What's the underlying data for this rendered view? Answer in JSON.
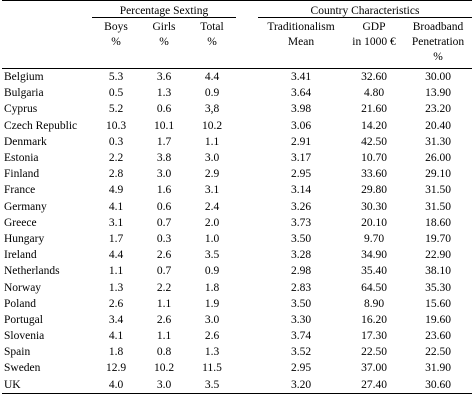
{
  "headers": {
    "group_sexting": "Percentage Sexting",
    "group_country": "Country Characteristics",
    "boys": [
      "Boys",
      "%"
    ],
    "girls": [
      "Girls",
      "%"
    ],
    "total": [
      "Total",
      "%"
    ],
    "trad": [
      "Traditionalism",
      "Mean"
    ],
    "gdp": [
      "GDP",
      "in 1000 €"
    ],
    "broadband": [
      "Broadband",
      "Penetration",
      "%"
    ]
  },
  "rows": [
    {
      "country": "Belgium",
      "boys": "5.3",
      "girls": "3.6",
      "total": "4.4",
      "trad": "3.41",
      "gdp": "32.60",
      "bb": "30.00"
    },
    {
      "country": "Bulgaria",
      "boys": "0.5",
      "girls": "1.3",
      "total": "0.9",
      "trad": "3.64",
      "gdp": "4.80",
      "bb": "13.90"
    },
    {
      "country": "Cyprus",
      "boys": "5.2",
      "girls": "0.6",
      "total": "3,8",
      "trad": "3.98",
      "gdp": "21.60",
      "bb": "23.20"
    },
    {
      "country": "Czech Republic",
      "boys": "10.3",
      "girls": "10.1",
      "total": "10.2",
      "trad": "3.06",
      "gdp": "14.20",
      "bb": "20.40"
    },
    {
      "country": "Denmark",
      "boys": "0.3",
      "girls": "1.7",
      "total": "1.1",
      "trad": "2.91",
      "gdp": "42.50",
      "bb": "31.30"
    },
    {
      "country": "Estonia",
      "boys": "2.2",
      "girls": "3.8",
      "total": "3.0",
      "trad": "3.17",
      "gdp": "10.70",
      "bb": "26.00"
    },
    {
      "country": "Finland",
      "boys": "2.8",
      "girls": "3.0",
      "total": "2.9",
      "trad": "2.95",
      "gdp": "33.60",
      "bb": "29.10"
    },
    {
      "country": "France",
      "boys": "4.9",
      "girls": "1.6",
      "total": "3.1",
      "trad": "3.14",
      "gdp": "29.80",
      "bb": "31.50"
    },
    {
      "country": "Germany",
      "boys": "4.1",
      "girls": "0.6",
      "total": "2.4",
      "trad": "3.26",
      "gdp": "30.30",
      "bb": "31.50"
    },
    {
      "country": "Greece",
      "boys": "3.1",
      "girls": "0.7",
      "total": "2.0",
      "trad": "3.73",
      "gdp": "20.10",
      "bb": "18.60"
    },
    {
      "country": "Hungary",
      "boys": "1.7",
      "girls": "0.3",
      "total": "1.0",
      "trad": "3.50",
      "gdp": "9.70",
      "bb": "19.70"
    },
    {
      "country": "Ireland",
      "boys": "4.4",
      "girls": "2.6",
      "total": "3.5",
      "trad": "3.28",
      "gdp": "34.90",
      "bb": "22.90"
    },
    {
      "country": "Netherlands",
      "boys": "1.1",
      "girls": "0.7",
      "total": "0.9",
      "trad": "2.98",
      "gdp": "35.40",
      "bb": "38.10"
    },
    {
      "country": "Norway",
      "boys": "1.3",
      "girls": "2.2",
      "total": "1.8",
      "trad": "2.83",
      "gdp": "64.50",
      "bb": "35.30"
    },
    {
      "country": "Poland",
      "boys": "2.6",
      "girls": "1.1",
      "total": "1.9",
      "trad": "3.50",
      "gdp": "8.90",
      "bb": "15.60"
    },
    {
      "country": "Portugal",
      "boys": "3.4",
      "girls": "2.6",
      "total": "3.0",
      "trad": "3.30",
      "gdp": "16.20",
      "bb": "19.60"
    },
    {
      "country": "Slovenia",
      "boys": "4.1",
      "girls": "1.1",
      "total": "2.6",
      "trad": "3.74",
      "gdp": "17.30",
      "bb": "23.60"
    },
    {
      "country": "Spain",
      "boys": "1.8",
      "girls": "0.8",
      "total": "1.3",
      "trad": "3.52",
      "gdp": "22.50",
      "bb": "22.50"
    },
    {
      "country": "Sweden",
      "boys": "12.9",
      "girls": "10.2",
      "total": "11.5",
      "trad": "2.95",
      "gdp": "37.00",
      "bb": "31.90"
    },
    {
      "country": "UK",
      "boys": "4.0",
      "girls": "3.0",
      "total": "3.5",
      "trad": "3.20",
      "gdp": "27.40",
      "bb": "30.60"
    }
  ]
}
